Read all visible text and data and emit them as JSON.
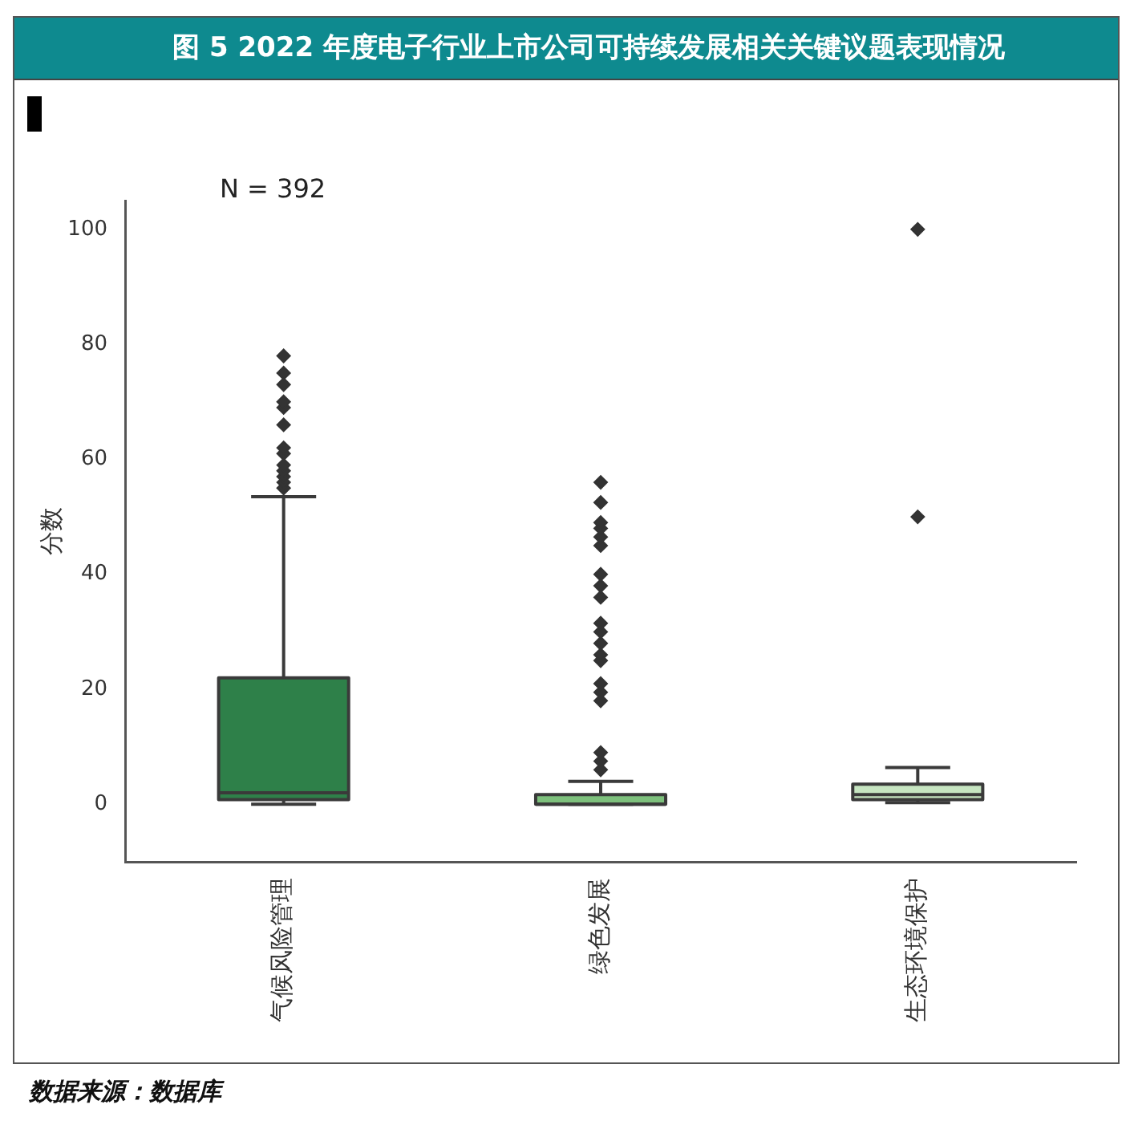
{
  "chart_data": {
    "type": "box",
    "title": "图 5 2022 年度电子行业上市公司可持续发展相关关键议题表现情况",
    "ylabel": "分数",
    "annotations": [
      "N = 392",
      "数据来源：数据库"
    ],
    "categories": [
      "气候风险管理",
      "绿色发展",
      "生态环境保护"
    ],
    "colors": [
      "#2e8049",
      "#7dc07c",
      "#c6e5c1"
    ],
    "boxes": [
      {
        "low": 0,
        "q1": 0.8,
        "median": 2,
        "q3": 22,
        "high": 53.5,
        "outliers": [
          55,
          56,
          57,
          58,
          59,
          61,
          62,
          66,
          69,
          70,
          73,
          75,
          78
        ]
      },
      {
        "low": 0,
        "q1": 0,
        "median": 0,
        "q3": 1.7,
        "high": 4,
        "outliers": [
          6,
          7.5,
          9,
          18,
          19.5,
          21,
          25,
          26,
          28,
          30,
          31.5,
          36,
          38,
          40,
          45,
          46.5,
          48,
          49,
          52.5,
          56
        ]
      },
      {
        "low": 0.3,
        "q1": 0.8,
        "median": 1.7,
        "q3": 3.5,
        "high": 6.4,
        "outliers": [
          50,
          100
        ]
      }
    ],
    "ylim": [
      -10,
      105
    ],
    "yticks": [
      0,
      20,
      40,
      60,
      80,
      100
    ],
    "grid": false,
    "marker": "diamond"
  }
}
